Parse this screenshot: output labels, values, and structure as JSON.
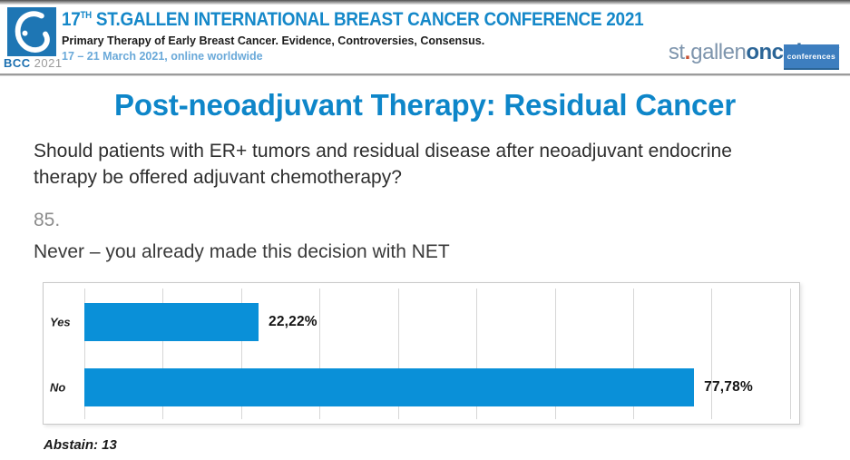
{
  "header": {
    "logo_square": {
      "label_bcc": "BCC",
      "label_year": "2021"
    },
    "conference": {
      "number": "17",
      "ordinal": "TH",
      "name": " ST.GALLEN INTERNATIONAL BREAST CANCER CONFERENCE 2021",
      "subtitle": "Primary Therapy of Early Breast Cancer. Evidence, Controversies, Consensus.",
      "dates": "17 – 21 March 2021, online worldwide"
    },
    "org": {
      "st": "st",
      "dot": ".",
      "gallen": "gallen",
      "oncology": "oncology",
      "conferences": "conferences"
    }
  },
  "slide": {
    "title": "Post-neoadjuvant Therapy: Residual Cancer",
    "question": "Should patients with ER+ tumors and residual disease after neoadjuvant endocrine therapy be offered adjuvant chemotherapy?",
    "question_number": "85.",
    "answer": "Never – you already made this decision with NET",
    "abstain_label": "Abstain: 13"
  },
  "chart_data": {
    "type": "bar",
    "orientation": "horizontal",
    "title": "",
    "categories": [
      "Yes",
      "No"
    ],
    "values": [
      22.22,
      77.78
    ],
    "value_labels": [
      "22,22%",
      "77,78%"
    ],
    "unit": "%",
    "xlim": [
      0,
      91.3
    ],
    "gridline_step": 10,
    "grid": true,
    "legend": false,
    "bar_color": "#0a90d8",
    "abstain_count": 13
  },
  "colors": {
    "title_blue": "#0e86c9",
    "header_blue": "#1588c9",
    "dates_blue": "#6aa9d9",
    "bar_blue": "#0a90d8",
    "logo_blue": "#1e76b4",
    "org_gray_blue": "#7e95ad",
    "org_dark_blue": "#2b6597",
    "org_dot_orange": "#c75133"
  }
}
